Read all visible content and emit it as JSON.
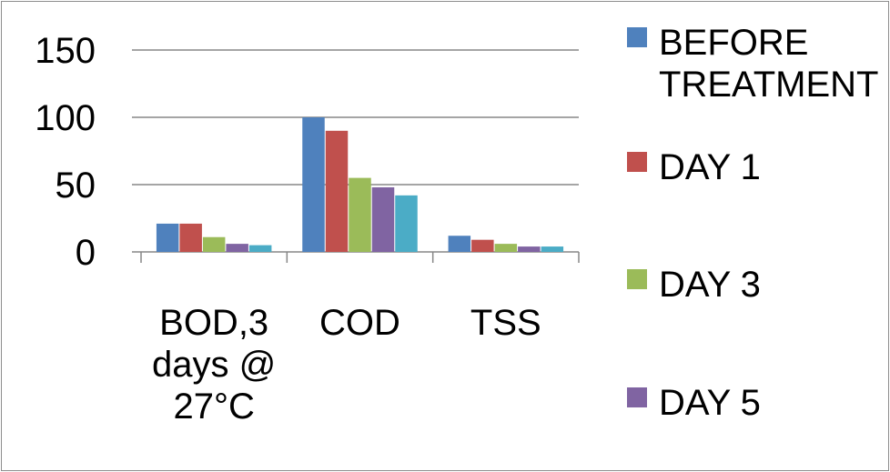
{
  "chart_data": {
    "type": "bar",
    "categories": [
      [
        "BOD,3",
        "days @",
        "27°C"
      ],
      [
        "COD"
      ],
      [
        "TSS"
      ]
    ],
    "series": [
      {
        "name": "BEFORE TREATMENT",
        "name_lines": [
          "BEFORE",
          "TREATMENT"
        ],
        "color": "#4f81bd",
        "values": [
          21,
          100,
          12
        ]
      },
      {
        "name": "DAY 1",
        "name_lines": [
          "DAY 1"
        ],
        "color": "#c0504d",
        "values": [
          21,
          90,
          9
        ]
      },
      {
        "name": "DAY 3",
        "name_lines": [
          "DAY 3"
        ],
        "color": "#9bbb59",
        "values": [
          11,
          55,
          6
        ]
      },
      {
        "name": "DAY 5",
        "name_lines": [
          "DAY 5"
        ],
        "color": "#8064a2",
        "values": [
          6,
          48,
          4
        ]
      },
      {
        "name": "",
        "name_lines": [],
        "color": "#4bacc6",
        "values": [
          5,
          42,
          4
        ]
      }
    ],
    "yticks": [
      "0",
      "50",
      "100",
      "150"
    ],
    "ylim": [
      0,
      150
    ],
    "grid": true,
    "legend_position": "right",
    "title": "",
    "xlabel": "",
    "ylabel": ""
  }
}
